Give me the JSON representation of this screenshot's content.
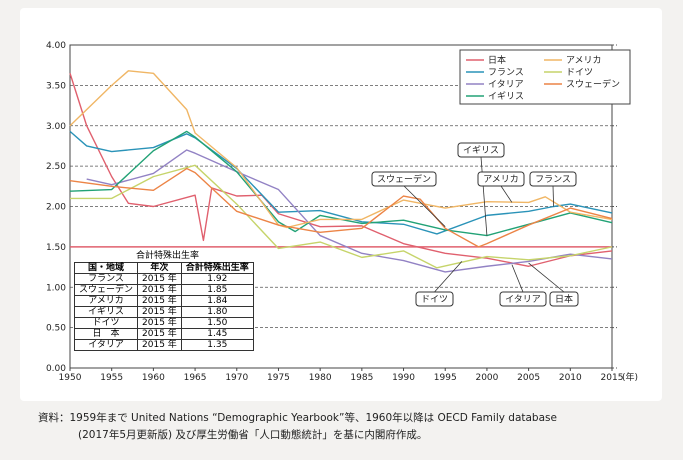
{
  "chart_data": {
    "type": "line",
    "xlabel": "(年)",
    "xlim": [
      1950,
      2015
    ],
    "ylim": [
      0,
      4
    ],
    "yticks": [
      "0.00",
      "0.50",
      "1.00",
      "1.50",
      "2.00",
      "2.50",
      "3.00",
      "3.50",
      "4.00"
    ],
    "xticks": [
      "1950",
      "1955",
      "1960",
      "1965",
      "1970",
      "1975",
      "1980",
      "1985",
      "1990",
      "1995",
      "2000",
      "2005",
      "2010",
      "2015"
    ],
    "grid": "horizontal dashed",
    "legend_placement": "top-right",
    "reference_line": {
      "y": 1.5,
      "color": "#e0606e"
    },
    "series": [
      {
        "name": "日本",
        "color": "#e0606e",
        "points": [
          [
            1950,
            3.65
          ],
          [
            1952,
            3.0
          ],
          [
            1955,
            2.37
          ],
          [
            1957,
            2.04
          ],
          [
            1960,
            2.0
          ],
          [
            1965,
            2.14
          ],
          [
            1966,
            1.58
          ],
          [
            1967,
            2.23
          ],
          [
            1970,
            2.13
          ],
          [
            1973,
            2.14
          ],
          [
            1975,
            1.91
          ],
          [
            1980,
            1.75
          ],
          [
            1985,
            1.76
          ],
          [
            1990,
            1.54
          ],
          [
            1995,
            1.42
          ],
          [
            2000,
            1.36
          ],
          [
            2005,
            1.26
          ],
          [
            2010,
            1.39
          ],
          [
            2015,
            1.45
          ]
        ]
      },
      {
        "name": "フランス",
        "color": "#2a93b8",
        "points": [
          [
            1950,
            2.93
          ],
          [
            1952,
            2.75
          ],
          [
            1955,
            2.68
          ],
          [
            1960,
            2.73
          ],
          [
            1964,
            2.9
          ],
          [
            1965,
            2.85
          ],
          [
            1970,
            2.47
          ],
          [
            1975,
            1.93
          ],
          [
            1980,
            1.95
          ],
          [
            1985,
            1.81
          ],
          [
            1990,
            1.78
          ],
          [
            1994,
            1.66
          ],
          [
            2000,
            1.89
          ],
          [
            2005,
            1.94
          ],
          [
            2008,
            2.0
          ],
          [
            2010,
            2.03
          ],
          [
            2015,
            1.92
          ]
        ]
      },
      {
        "name": "イタリア",
        "color": "#9282c4",
        "points": [
          [
            1952,
            2.34
          ],
          [
            1955,
            2.27
          ],
          [
            1960,
            2.41
          ],
          [
            1964,
            2.7
          ],
          [
            1965,
            2.66
          ],
          [
            1970,
            2.43
          ],
          [
            1975,
            2.21
          ],
          [
            1980,
            1.64
          ],
          [
            1985,
            1.42
          ],
          [
            1990,
            1.33
          ],
          [
            1995,
            1.19
          ],
          [
            2000,
            1.26
          ],
          [
            2005,
            1.32
          ],
          [
            2010,
            1.41
          ],
          [
            2015,
            1.35
          ]
        ]
      },
      {
        "name": "イギリス",
        "color": "#22a276",
        "points": [
          [
            1950,
            2.19
          ],
          [
            1955,
            2.21
          ],
          [
            1960,
            2.69
          ],
          [
            1964,
            2.93
          ],
          [
            1965,
            2.86
          ],
          [
            1970,
            2.43
          ],
          [
            1975,
            1.81
          ],
          [
            1977,
            1.69
          ],
          [
            1980,
            1.89
          ],
          [
            1985,
            1.79
          ],
          [
            1990,
            1.83
          ],
          [
            1995,
            1.71
          ],
          [
            2000,
            1.64
          ],
          [
            2005,
            1.78
          ],
          [
            2010,
            1.92
          ],
          [
            2015,
            1.8
          ]
        ]
      },
      {
        "name": "アメリカ",
        "color": "#f0b665",
        "points": [
          [
            1950,
            3.0
          ],
          [
            1955,
            3.5
          ],
          [
            1957,
            3.68
          ],
          [
            1960,
            3.65
          ],
          [
            1964,
            3.2
          ],
          [
            1965,
            2.91
          ],
          [
            1970,
            2.48
          ],
          [
            1975,
            1.77
          ],
          [
            1976,
            1.74
          ],
          [
            1980,
            1.84
          ],
          [
            1985,
            1.84
          ],
          [
            1990,
            2.08
          ],
          [
            1995,
            1.98
          ],
          [
            2000,
            2.06
          ],
          [
            2005,
            2.05
          ],
          [
            2007,
            2.12
          ],
          [
            2010,
            1.93
          ],
          [
            2015,
            1.84
          ]
        ]
      },
      {
        "name": "ドイツ",
        "color": "#c6d46a",
        "points": [
          [
            1950,
            2.1
          ],
          [
            1955,
            2.1
          ],
          [
            1960,
            2.37
          ],
          [
            1965,
            2.51
          ],
          [
            1970,
            2.03
          ],
          [
            1975,
            1.48
          ],
          [
            1980,
            1.56
          ],
          [
            1985,
            1.37
          ],
          [
            1990,
            1.45
          ],
          [
            1994,
            1.24
          ],
          [
            2000,
            1.38
          ],
          [
            2005,
            1.34
          ],
          [
            2010,
            1.39
          ],
          [
            2015,
            1.5
          ]
        ]
      },
      {
        "name": "スウェーデン",
        "color": "#ec8446",
        "points": [
          [
            1950,
            2.32
          ],
          [
            1955,
            2.25
          ],
          [
            1960,
            2.2
          ],
          [
            1964,
            2.47
          ],
          [
            1965,
            2.42
          ],
          [
            1970,
            1.94
          ],
          [
            1975,
            1.77
          ],
          [
            1980,
            1.68
          ],
          [
            1985,
            1.73
          ],
          [
            1990,
            2.13
          ],
          [
            1992,
            2.09
          ],
          [
            1995,
            1.73
          ],
          [
            1999,
            1.5
          ],
          [
            2000,
            1.54
          ],
          [
            2005,
            1.77
          ],
          [
            2010,
            1.98
          ],
          [
            2015,
            1.85
          ]
        ]
      }
    ],
    "callouts": [
      {
        "label": "スウェーデン",
        "x": 1995,
        "y": 1.75
      },
      {
        "label": "イギリス",
        "x": 2000,
        "y": 1.64
      },
      {
        "label": "アメリカ",
        "x": 2003,
        "y": 2.05
      },
      {
        "label": "フランス",
        "x": 2008,
        "y": 2.0
      },
      {
        "label": "ドイツ",
        "x": 1997,
        "y": 1.32
      },
      {
        "label": "イタリア",
        "x": 2003,
        "y": 1.28
      },
      {
        "label": "日本",
        "x": 2005,
        "y": 1.3
      }
    ]
  },
  "table": {
    "title": "合計特殊出生率",
    "headers": [
      "国・地域",
      "年次",
      "合計特殊出生率"
    ],
    "rows": [
      [
        "フランス",
        "2015 年",
        "1.92"
      ],
      [
        "スウェーデン",
        "2015 年",
        "1.85"
      ],
      [
        "アメリカ",
        "2015 年",
        "1.84"
      ],
      [
        "イギリス",
        "2015 年",
        "1.80"
      ],
      [
        "ドイツ",
        "2015 年",
        "1.50"
      ],
      [
        "日　本",
        "2015 年",
        "1.45"
      ],
      [
        "イタリア",
        "2015 年",
        "1.35"
      ]
    ]
  },
  "footer": {
    "line1": "資料：1959年まで United Nations “Demographic Yearbook”等、1960年以降は OECD Family database",
    "line2": "(2017年5月更新版) 及び厚生労働省「人口動態統計」を基に内閣府作成。"
  }
}
